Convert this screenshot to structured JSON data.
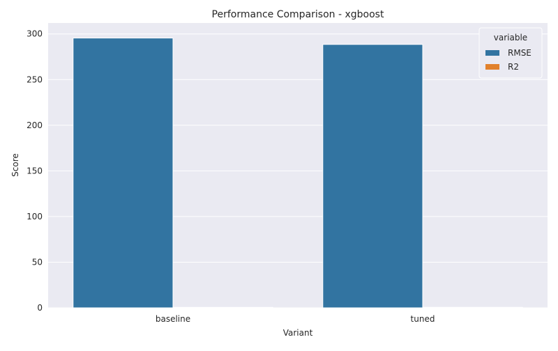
{
  "chart_data": {
    "type": "bar",
    "title": "Performance Comparison - xgboost",
    "xlabel": "Variant",
    "ylabel": "Score",
    "categories": [
      "baseline",
      "tuned"
    ],
    "series": [
      {
        "name": "RMSE",
        "values": [
          295.5,
          288.5
        ],
        "color": "#3274a1"
      },
      {
        "name": "R2",
        "values": [
          0.55,
          0.58
        ],
        "color": "#e1812c"
      }
    ],
    "ylim": [
      0,
      312
    ],
    "yticks": [
      0,
      50,
      100,
      150,
      200,
      250,
      300
    ],
    "grid": true,
    "legend": {
      "title": "variable",
      "placement": "top-right"
    }
  },
  "colors": {
    "background": "#ffffff",
    "plot_background": "#eaeaf2",
    "grid": "#ffffff",
    "text": "#262626"
  }
}
